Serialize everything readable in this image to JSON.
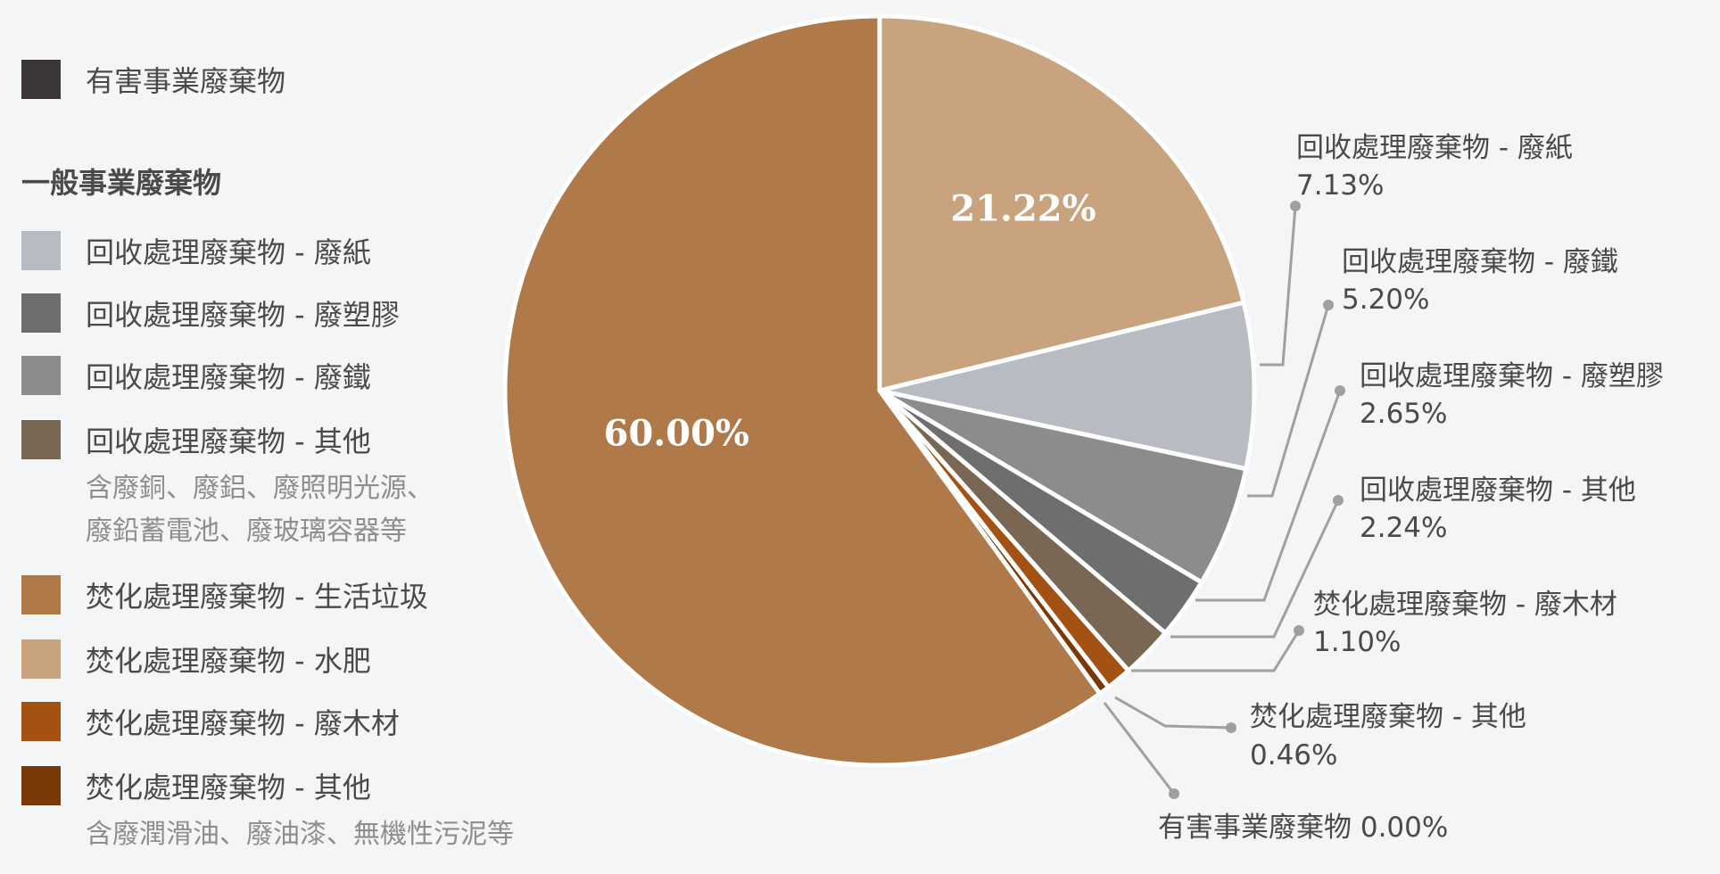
{
  "legend": {
    "hazardous": {
      "label": "有害事業廢棄物",
      "color": "#3a3736"
    },
    "general_heading": "一般事業廢棄物",
    "items": [
      {
        "label": "回收處理廢棄物 - 廢紙",
        "color": "#b8bcc2"
      },
      {
        "label": "回收處理廢棄物 - 廢塑膠",
        "color": "#6e6e6e"
      },
      {
        "label": "回收處理廢棄物 - 廢鐵",
        "color": "#8c8c8c"
      },
      {
        "label": "回收處理廢棄物 - 其他",
        "color": "#7a6753",
        "note_lines": [
          "含廢銅、廢鋁、廢照明光源、",
          "廢鉛蓄電池、廢玻璃容器等"
        ]
      },
      {
        "label": "焚化處理廢棄物 - 生活垃圾",
        "color": "#b0794a"
      },
      {
        "label": "焚化處理廢棄物 - 水肥",
        "color": "#c9a27e"
      },
      {
        "label": "焚化處理廢棄物 - 廢木材",
        "color": "#a35214"
      },
      {
        "label": "焚化處理廢棄物 - 其他",
        "color": "#7a3806",
        "note_lines": [
          "含廢潤滑油、廢油漆、無機性污泥等"
        ]
      }
    ]
  },
  "chart_data": {
    "type": "pie",
    "slices": [
      {
        "name": "焚化處理廢棄物 - 水肥",
        "value": 21.22,
        "color": "#c9a27e",
        "label": "21.22%",
        "label_style": "inside"
      },
      {
        "name": "回收處理廢棄物 - 廢紙",
        "value": 7.13,
        "color": "#b8bcc2",
        "label": "7.13%",
        "label_style": "callout"
      },
      {
        "name": "回收處理廢棄物 - 廢鐵",
        "value": 5.2,
        "color": "#8c8c8c",
        "label": "5.20%",
        "label_style": "callout"
      },
      {
        "name": "回收處理廢棄物 - 廢塑膠",
        "value": 2.65,
        "color": "#6e6e6e",
        "label": "2.65%",
        "label_style": "callout"
      },
      {
        "name": "回收處理廢棄物 - 其他",
        "value": 2.24,
        "color": "#7a6753",
        "label": "2.24%",
        "label_style": "callout"
      },
      {
        "name": "焚化處理廢棄物 - 廢木材",
        "value": 1.1,
        "color": "#a35214",
        "label": "1.10%",
        "label_style": "callout"
      },
      {
        "name": "焚化處理廢棄物 - 其他",
        "value": 0.46,
        "color": "#7a3806",
        "label": "0.46%",
        "label_style": "callout"
      },
      {
        "name": "有害事業廢棄物",
        "value": 0.0,
        "color": "#3a3736",
        "label": "0.00%",
        "label_style": "callout-inline"
      },
      {
        "name": "焚化處理廢棄物 - 生活垃圾",
        "value": 60.0,
        "color": "#b0794a",
        "label": "60.00%",
        "label_style": "inside"
      }
    ],
    "start_angle": "12 o'clock",
    "direction": "clockwise",
    "legend_placement": "left"
  }
}
